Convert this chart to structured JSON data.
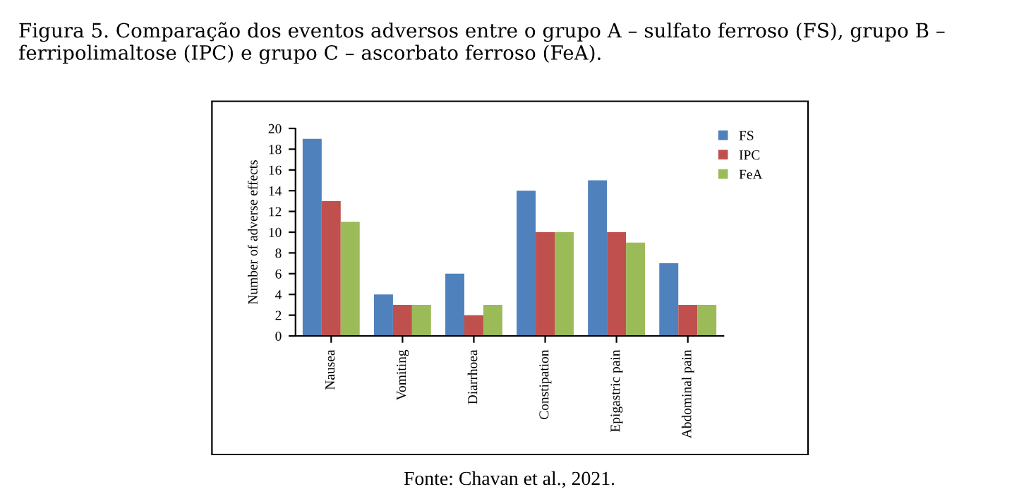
{
  "chart_data": {
    "type": "bar",
    "title": "Figura 5. Comparação dos eventos adversos entre o grupo A – sulfato ferroso (FS), grupo B – ferripolimaltose (IPC) e grupo C – ascorbato ferroso (FeA).",
    "ylabel": "Number of adverse effects",
    "categories": [
      "Nausea",
      "Vomiting",
      "Diarrhoea",
      "Constipation",
      "Epigastric pain",
      "Abdominal pain"
    ],
    "series": [
      {
        "name": "FS",
        "color": "#4f81bd",
        "values": [
          19,
          4,
          6,
          14,
          15,
          7
        ]
      },
      {
        "name": "IPC",
        "color": "#c0504d",
        "values": [
          13,
          3,
          2,
          10,
          10,
          3
        ]
      },
      {
        "name": "FeA",
        "color": "#9bbb59",
        "values": [
          11,
          3,
          3,
          10,
          9,
          3
        ]
      }
    ],
    "ylim": [
      0,
      20
    ],
    "yticks": [
      0,
      2,
      4,
      6,
      8,
      10,
      12,
      14,
      16,
      18,
      20
    ],
    "grid": false,
    "legend": "top right",
    "annotations": [
      "Fonte: Chavan et al., 2021."
    ]
  }
}
